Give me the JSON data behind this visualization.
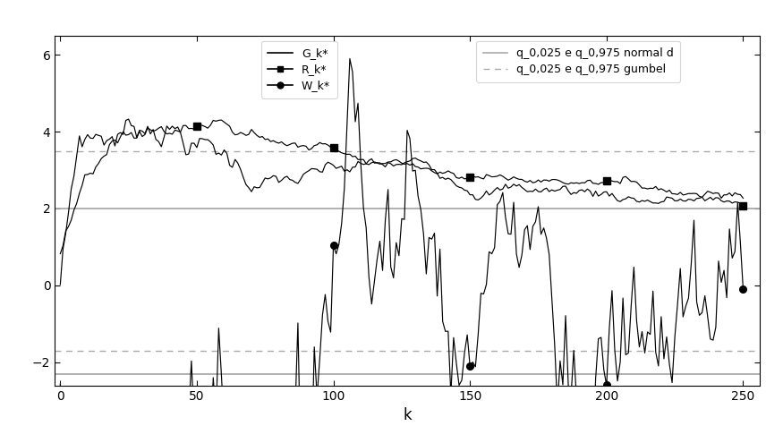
{
  "title": "",
  "xlabel": "k",
  "ylabel": "",
  "xlim": [
    -2,
    256
  ],
  "ylim": [
    -2.6,
    6.5
  ],
  "yticks": [
    -2,
    0,
    2,
    4,
    6
  ],
  "xticks": [
    0,
    50,
    100,
    150,
    200,
    250
  ],
  "hline_solid": [
    2.0,
    -2.3
  ],
  "hline_dashed": [
    3.5,
    -1.7
  ],
  "legend1_labels": [
    "G_k*",
    "R_k*",
    "W_k*"
  ],
  "legend2_labels": [
    "q_0,025 e q_0,975 normal d",
    "q_0,025 e q_0,975 gumbel"
  ],
  "marker_positions": [
    50,
    100,
    150,
    200,
    250
  ],
  "n_points": 251,
  "line_color": "black",
  "ref_solid_color": "#aaaaaa",
  "ref_dashed_color": "#aaaaaa",
  "bg_color": "white"
}
